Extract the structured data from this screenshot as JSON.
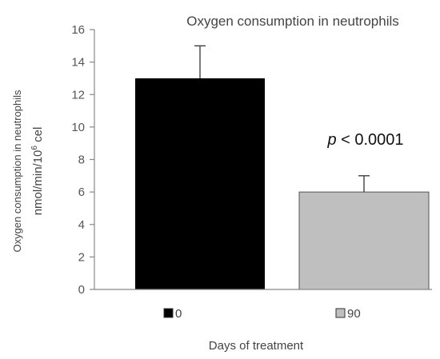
{
  "chart_data": {
    "type": "bar",
    "title": "Oxygen consumption  in neutrophils",
    "ylabel_line1": "Oxygen consumption in neutrophils",
    "ylabel_line2_prefix": "nmol/min/10",
    "ylabel_line2_sup": "6",
    "ylabel_line2_suffix": " cel",
    "xlabel": "Days of treatment",
    "categories": [
      "0",
      "90"
    ],
    "values": [
      13,
      6
    ],
    "errors": [
      2,
      1
    ],
    "colors": [
      "#000000",
      "#bfbfbf"
    ],
    "ylim": [
      0,
      16
    ],
    "yticks": [
      0,
      2,
      4,
      6,
      8,
      10,
      12,
      14,
      16
    ],
    "grid": false,
    "legend_placement": "bottom",
    "legend": [
      "0",
      "90"
    ],
    "annotation": {
      "p_symbol": "p",
      "text": " < 0.0001"
    }
  }
}
